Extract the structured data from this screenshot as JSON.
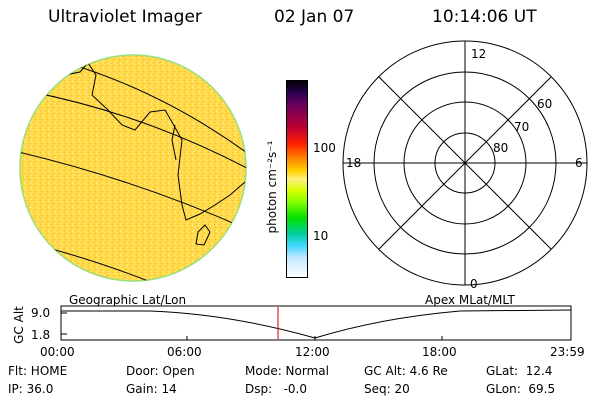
{
  "header": {
    "instrument": "Ultraviolet Imager",
    "date": "02 Jan 07",
    "time": "10:14:06 UT"
  },
  "colorbar": {
    "unit_label": "photon cm⁻²s⁻¹",
    "tick_labels": [
      "100",
      "10"
    ],
    "colors": [
      "#000000",
      "#3a0060",
      "#8a0050",
      "#e00000",
      "#ff7a00",
      "#ffd200",
      "#aaff00",
      "#00e000",
      "#00c0c0",
      "#bfe8ff",
      "#ffffff"
    ]
  },
  "polar_plot": {
    "clock_labels": [
      "12",
      "18",
      "6",
      "0"
    ],
    "lat_labels": [
      "60",
      "70",
      "80"
    ]
  },
  "timeline": {
    "left_label": "Geographic Lat/Lon",
    "right_label": "Apex MLat/MLT",
    "axis_label": "GC Alt",
    "y_ticks": [
      "9.0",
      "1.8"
    ],
    "x_ticks": [
      "00:00",
      "06:00",
      "12:00",
      "18:00",
      "23:59"
    ],
    "cursor_color": "#cc0000"
  },
  "status": {
    "flt": "Flt: HOME",
    "door": "Door: Open",
    "mode": "Mode: Normal",
    "gc_alt": "GC Alt: 4.6 Re",
    "glat": "GLat:  12.4",
    "ip": "IP: 36.0",
    "gain": "Gain: 14",
    "dsp": "Dsp:   -0.0",
    "seq": "Seq: 20",
    "glon": "GLon:  69.5"
  }
}
